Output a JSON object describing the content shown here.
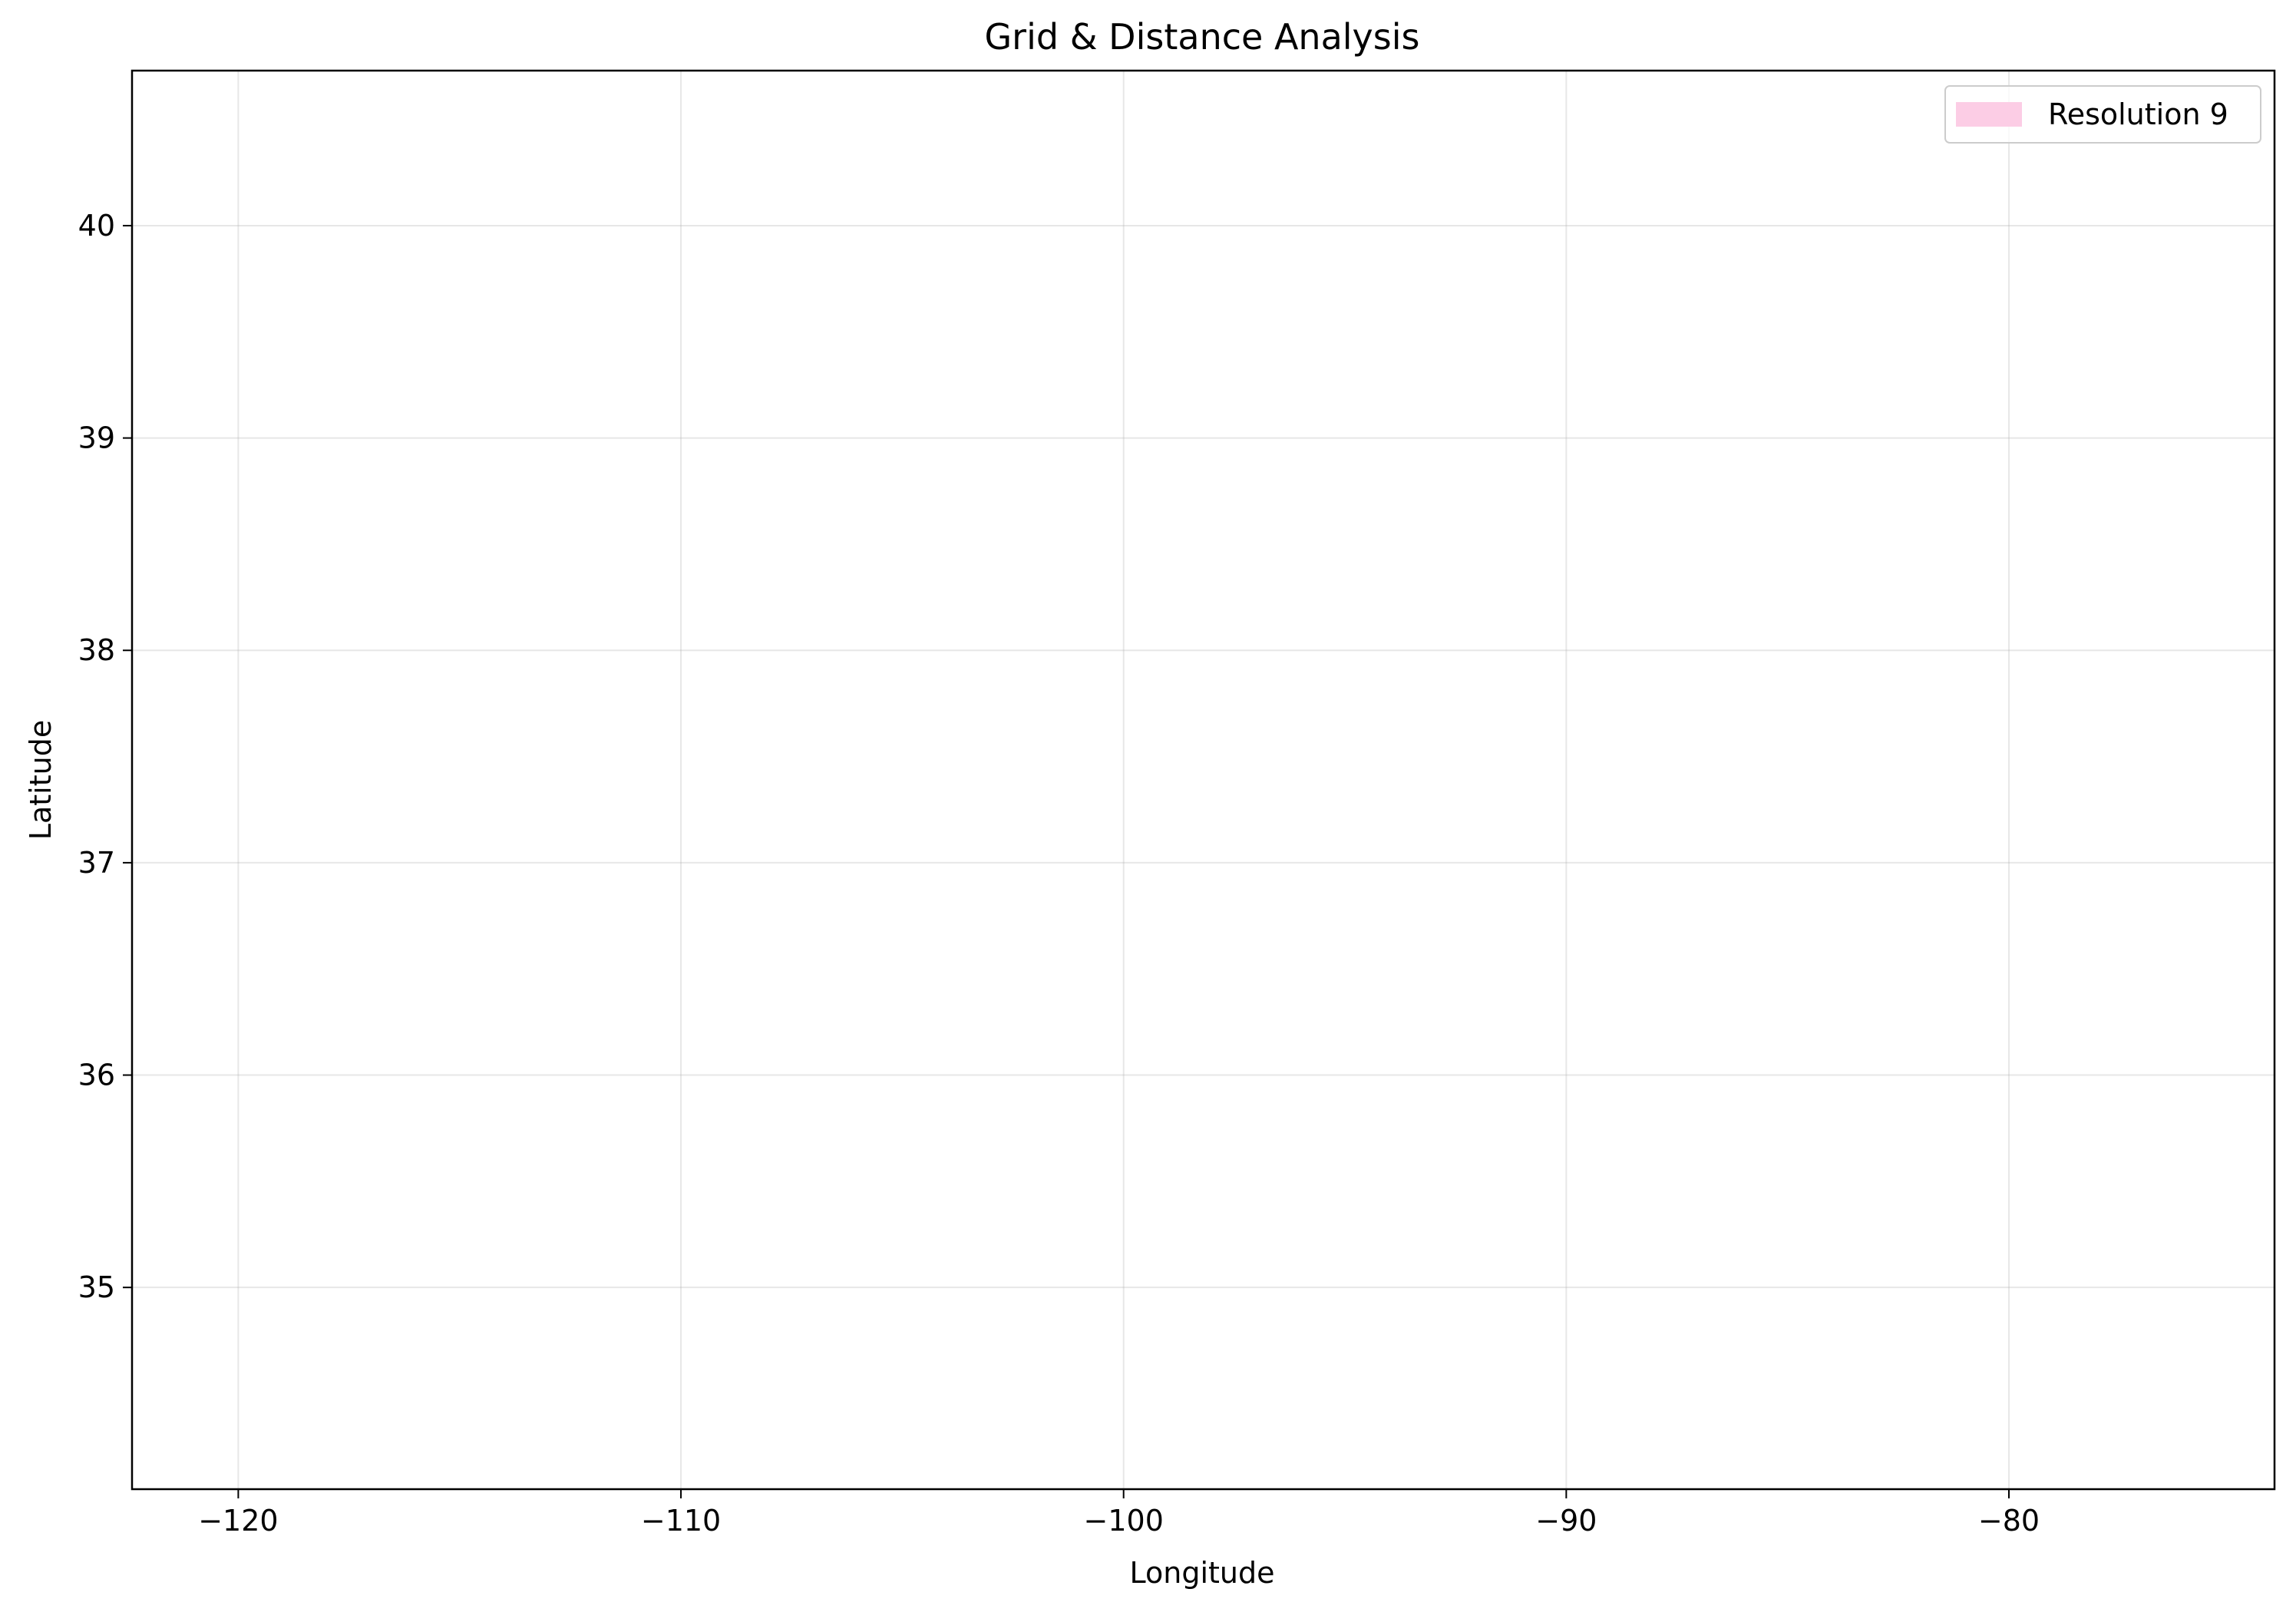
{
  "chart_data": {
    "type": "line",
    "title": "Grid & Distance Analysis",
    "xlabel": "Longitude",
    "ylabel": "Latitude",
    "xlim": [
      -122.4,
      -74.0
    ],
    "ylim": [
      34.05,
      40.73
    ],
    "xticks": [
      -120,
      -110,
      -100,
      -90,
      -80
    ],
    "xtick_labels": [
      "−120",
      "−110",
      "−100",
      "−90",
      "−80"
    ],
    "yticks": [
      35,
      36,
      37,
      38,
      39,
      40
    ],
    "ytick_labels": [
      "35",
      "36",
      "37",
      "38",
      "39",
      "40"
    ],
    "grid": true,
    "legend_position": "top-right",
    "series": [
      {
        "name": "Resolution 9",
        "color": "#fccde5",
        "kind": "filled-patch"
      }
    ]
  }
}
